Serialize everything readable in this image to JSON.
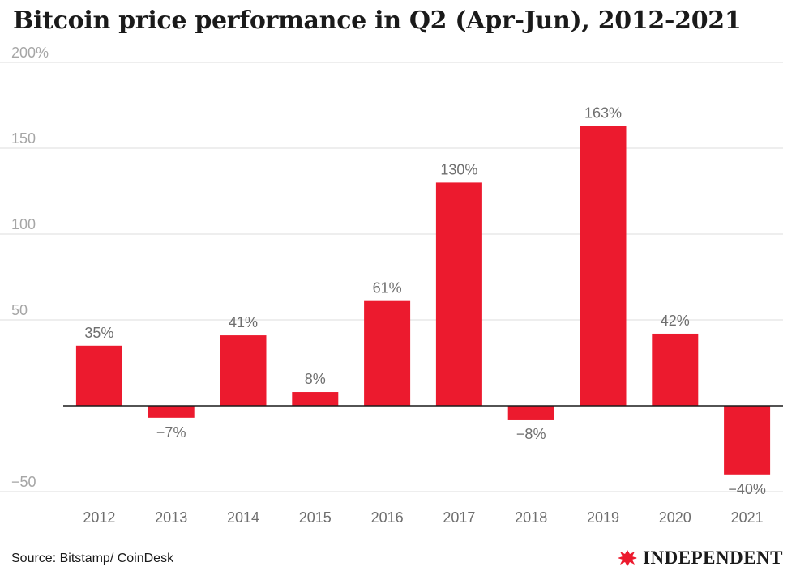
{
  "title": "Bitcoin price performance in Q2 (Apr-Jun), 2012-2021",
  "source": "Source: Bitstamp/ CoinDesk",
  "brand": {
    "name": "INDEPENDENT",
    "logo_icon": "eagle-icon",
    "logo_color": "#ec1a2e"
  },
  "chart_data": {
    "type": "bar",
    "categories": [
      "2012",
      "2013",
      "2014",
      "2015",
      "2016",
      "2017",
      "2018",
      "2019",
      "2020",
      "2021"
    ],
    "values": [
      35,
      -7,
      41,
      8,
      61,
      130,
      -8,
      163,
      42,
      -40
    ],
    "data_labels": [
      "35%",
      "−7%",
      "41%",
      "8%",
      "61%",
      "130%",
      "−8%",
      "163%",
      "42%",
      "−40%"
    ],
    "ylim": [
      -50,
      200
    ],
    "yticks": [
      -50,
      50,
      100,
      150,
      200
    ],
    "ytick_labels": [
      "−50",
      "50",
      "100",
      "150",
      "200%"
    ],
    "grid": true,
    "bar_color": "#ec1a2e",
    "title": "Bitcoin price performance in Q2 (Apr-Jun), 2012-2021",
    "xlabel": "",
    "ylabel": ""
  }
}
